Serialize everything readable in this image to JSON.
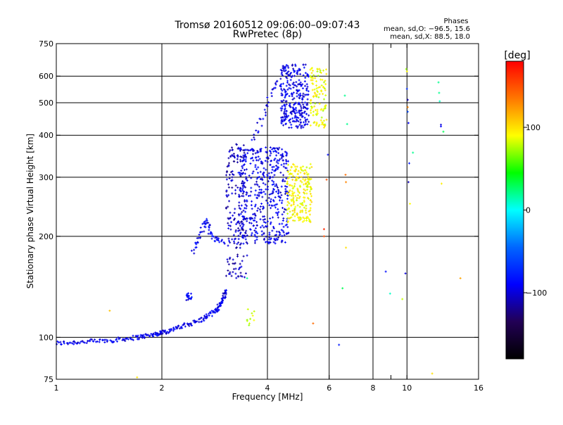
{
  "chart_data": {
    "type": "scatter",
    "title": "Tromsø 20160512 09:06:00–09:07:43",
    "subtitle": "RwPretec (8p)",
    "phase_box": {
      "heading": "Phases",
      "line1": "mean, sd,O: −96.5, 15.6",
      "line2": "mean, sd,X:  88.5, 18.0"
    },
    "xlabel": "Frequency [MHz]",
    "ylabel": "Stationary phase Virtual Height [km]",
    "xscale": "log",
    "yscale": "log",
    "xlim": [
      1,
      16
    ],
    "ylim": [
      75,
      750
    ],
    "xticks": [
      1,
      2,
      4,
      6,
      8,
      10,
      16
    ],
    "xtick_labels": [
      "1",
      "2",
      "4",
      "6",
      "8",
      "10",
      "16"
    ],
    "xminor_ticks": [
      9
    ],
    "yticks": [
      75,
      100,
      200,
      300,
      400,
      500,
      600,
      750
    ],
    "ytick_labels": [
      "75",
      "100",
      "200",
      "300",
      "400",
      "500",
      "600",
      "750"
    ],
    "x_gridlines": [
      2,
      4,
      6,
      8,
      10
    ],
    "y_gridlines": [
      100,
      200,
      300,
      400,
      500,
      600
    ],
    "colorbar": {
      "label": "[deg]",
      "range": [
        -180,
        180
      ],
      "ticks": [
        100,
        0,
        -100
      ],
      "tick_labels": [
        "100",
        "0",
        "−100"
      ],
      "colors": [
        "#ff0000",
        "#ff7700",
        "#ffff00",
        "#00ff00",
        "#00ffff",
        "#0066ff",
        "#0000ff",
        "#220055",
        "#000000"
      ]
    },
    "traces": [
      {
        "name": "O_base_layer",
        "shape": "curve",
        "points": [
          [
            1.0,
            96
          ],
          [
            1.2,
            97
          ],
          [
            1.45,
            98
          ],
          [
            1.7,
            100
          ],
          [
            1.9,
            102
          ],
          [
            2.05,
            104
          ],
          [
            2.3,
            108
          ],
          [
            2.6,
            113
          ],
          [
            2.85,
            120
          ],
          [
            2.97,
            128
          ],
          [
            3.05,
            138
          ]
        ],
        "phase": -95,
        "spread_f": 0.01,
        "spread_h": 0.015,
        "n": 260
      },
      {
        "name": "O_step_1",
        "shape": "cluster",
        "box": [
          2.35,
          2.45,
          129,
          136
        ],
        "phase": -90,
        "n": 18
      },
      {
        "name": "O_spur",
        "shape": "curve",
        "points": [
          [
            2.45,
            180
          ],
          [
            2.55,
            195
          ],
          [
            2.62,
            212
          ],
          [
            2.68,
            223
          ],
          [
            2.75,
            205
          ],
          [
            2.85,
            195
          ],
          [
            3.0,
            192
          ]
        ],
        "phase": -92,
        "spread_f": 0.012,
        "spread_h": 0.02,
        "n": 60
      },
      {
        "name": "O_steep_rise",
        "shape": "cluster",
        "box": [
          3.05,
          3.5,
          150,
          380
        ],
        "phase": -108,
        "n": 200
      },
      {
        "name": "O_mid_block",
        "shape": "cluster",
        "box": [
          3.3,
          4.6,
          190,
          370
        ],
        "phase": -95,
        "n": 460
      },
      {
        "name": "O_upper_block",
        "shape": "cluster",
        "box": [
          4.35,
          5.25,
          420,
          650
        ],
        "phase": -96,
        "n": 300
      },
      {
        "name": "O_trail",
        "shape": "curve",
        "points": [
          [
            3.6,
            380
          ],
          [
            3.8,
            430
          ],
          [
            3.95,
            480
          ],
          [
            4.1,
            540
          ],
          [
            4.3,
            580
          ]
        ],
        "phase": -98,
        "spread_f": 0.015,
        "spread_h": 0.02,
        "n": 30
      },
      {
        "name": "X_lower_block",
        "shape": "cluster",
        "box": [
          4.55,
          5.35,
          220,
          330
        ],
        "phase": 92,
        "n": 210
      },
      {
        "name": "X_upper_block",
        "shape": "cluster",
        "box": [
          5.3,
          5.9,
          420,
          640
        ],
        "phase": 88,
        "n": 110
      },
      {
        "name": "X_low_points",
        "shape": "cluster",
        "box": [
          3.5,
          3.7,
          108,
          126
        ],
        "phase": 75,
        "n": 10
      },
      {
        "name": "sporadic",
        "shape": "points",
        "points": [
          [
            1.42,
            120,
            110
          ],
          [
            1.7,
            76,
            100
          ],
          [
            3.5,
            150,
            20
          ],
          [
            5.4,
            110,
            140
          ],
          [
            5.8,
            210,
            165
          ],
          [
            5.8,
            200,
            150
          ],
          [
            5.9,
            295,
            150
          ],
          [
            6.4,
            95,
            -80
          ],
          [
            6.55,
            140,
            30
          ],
          [
            6.65,
            525,
            20
          ],
          [
            6.68,
            305,
            140
          ],
          [
            6.7,
            290,
            130
          ],
          [
            6.7,
            185,
            100
          ],
          [
            6.75,
            432,
            20
          ],
          [
            5.95,
            350,
            -85
          ],
          [
            8.7,
            157,
            -85
          ],
          [
            8.95,
            135,
            10
          ],
          [
            9.7,
            130,
            80
          ],
          [
            9.9,
            155,
            -100
          ],
          [
            9.95,
            630,
            70
          ],
          [
            10.0,
            620,
            90
          ],
          [
            10.0,
            550,
            -70
          ],
          [
            10.05,
            510,
            -110
          ],
          [
            10.05,
            485,
            130
          ],
          [
            10.05,
            470,
            -60
          ],
          [
            10.1,
            435,
            -90
          ],
          [
            10.1,
            290,
            -110
          ],
          [
            10.15,
            330,
            -80
          ],
          [
            10.2,
            250,
            90
          ],
          [
            10.4,
            355,
            20
          ],
          [
            11.8,
            78,
            100
          ],
          [
            12.3,
            575,
            20
          ],
          [
            12.35,
            535,
            20
          ],
          [
            12.4,
            505,
            10
          ],
          [
            12.5,
            430,
            -100
          ],
          [
            12.5,
            425,
            -90
          ],
          [
            12.55,
            287,
            95
          ],
          [
            12.7,
            410,
            30
          ],
          [
            14.2,
            150,
            120
          ]
        ]
      }
    ]
  }
}
